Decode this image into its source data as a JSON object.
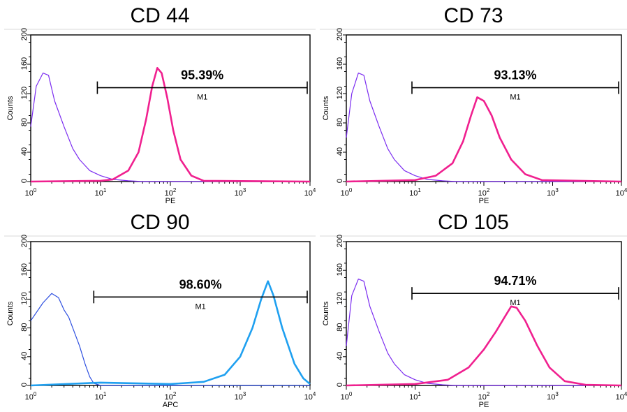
{
  "chart_data": [
    {
      "type": "line",
      "title": "CD 44",
      "xlabel": "PE",
      "ylabel": "Counts",
      "x_scale": "log",
      "xlim": [
        1,
        10000
      ],
      "ylim": [
        0,
        200
      ],
      "x_ticks": [
        1,
        10,
        100,
        1000,
        10000
      ],
      "y_ticks": [
        0,
        40,
        80,
        120,
        160,
        200
      ],
      "marker": {
        "label": "M1",
        "percent": "95.39%",
        "x_range": [
          9,
          10000
        ]
      },
      "series": [
        {
          "color": "#7B2CF0",
          "x": [
            1,
            1.2,
            1.5,
            1.8,
            2.2,
            3,
            4,
            5,
            7,
            10,
            15,
            25,
            40,
            10000
          ],
          "y": [
            75,
            130,
            148,
            145,
            110,
            75,
            45,
            30,
            15,
            8,
            3,
            1,
            0,
            0
          ]
        },
        {
          "color": "#F0208F",
          "x": [
            1,
            10,
            15,
            25,
            35,
            45,
            55,
            65,
            75,
            90,
            110,
            140,
            200,
            300,
            10000
          ],
          "y": [
            0,
            1,
            3,
            15,
            40,
            85,
            130,
            155,
            148,
            115,
            70,
            30,
            8,
            1,
            0
          ]
        }
      ]
    },
    {
      "type": "line",
      "title": "CD 73",
      "xlabel": "PE",
      "ylabel": "Counts",
      "x_scale": "log",
      "xlim": [
        1,
        10000
      ],
      "ylim": [
        0,
        200
      ],
      "x_ticks": [
        1,
        10,
        100,
        1000,
        10000
      ],
      "y_ticks": [
        0,
        40,
        80,
        120,
        160,
        200
      ],
      "marker": {
        "label": "M1",
        "percent": "93.13%",
        "x_range": [
          9,
          10000
        ]
      },
      "series": [
        {
          "color": "#7B2CF0",
          "x": [
            1,
            1.2,
            1.5,
            1.8,
            2.2,
            3,
            4,
            5,
            7,
            10,
            15,
            25,
            40,
            10000
          ],
          "y": [
            60,
            120,
            148,
            145,
            110,
            75,
            45,
            30,
            15,
            8,
            3,
            1,
            0,
            0
          ]
        },
        {
          "color": "#F0208F",
          "x": [
            1,
            10,
            20,
            35,
            50,
            65,
            80,
            100,
            130,
            170,
            250,
            400,
            700,
            10000
          ],
          "y": [
            0,
            2,
            8,
            25,
            55,
            90,
            115,
            110,
            90,
            60,
            30,
            10,
            2,
            0
          ]
        }
      ]
    },
    {
      "type": "line",
      "title": "CD 90",
      "xlabel": "APC",
      "ylabel": "Counts",
      "x_scale": "log",
      "xlim": [
        1,
        10000
      ],
      "ylim": [
        0,
        200
      ],
      "x_ticks": [
        1,
        10,
        100,
        1000,
        10000
      ],
      "y_ticks": [
        0,
        40,
        80,
        120,
        160,
        200
      ],
      "marker": {
        "label": "M1",
        "percent": "98.60%",
        "x_range": [
          8,
          10000
        ]
      },
      "series": [
        {
          "color": "#2D4FE0",
          "x": [
            1,
            1.5,
            2,
            2.5,
            3,
            3.5,
            4,
            5,
            6,
            7,
            8,
            10,
            10000
          ],
          "y": [
            90,
            115,
            128,
            122,
            105,
            95,
            80,
            55,
            30,
            12,
            3,
            0,
            0
          ]
        },
        {
          "color": "#1FA0F0",
          "x": [
            1,
            10,
            100,
            300,
            600,
            1000,
            1500,
            2000,
            2500,
            3000,
            4000,
            6000,
            8000,
            10000
          ],
          "y": [
            0,
            4,
            2,
            5,
            15,
            40,
            80,
            120,
            145,
            125,
            80,
            30,
            10,
            2
          ]
        }
      ]
    },
    {
      "type": "line",
      "title": "CD 105",
      "xlabel": "PE",
      "ylabel": "Counts",
      "x_scale": "log",
      "xlim": [
        1,
        10000
      ],
      "ylim": [
        0,
        200
      ],
      "x_ticks": [
        1,
        10,
        100,
        1000,
        10000
      ],
      "y_ticks": [
        0,
        40,
        80,
        120,
        160,
        200
      ],
      "marker": {
        "label": "M1",
        "percent": "94.71%",
        "x_range": [
          9,
          10000
        ]
      },
      "series": [
        {
          "color": "#7B2CF0",
          "x": [
            1,
            1.2,
            1.5,
            1.8,
            2.2,
            3,
            4,
            5,
            7,
            10,
            15,
            25,
            40,
            10000
          ],
          "y": [
            55,
            125,
            148,
            145,
            110,
            75,
            45,
            30,
            15,
            8,
            3,
            1,
            0,
            0
          ]
        },
        {
          "color": "#F0208F",
          "x": [
            1,
            10,
            30,
            60,
            100,
            150,
            200,
            250,
            300,
            400,
            600,
            900,
            1500,
            3000,
            10000
          ],
          "y": [
            0,
            2,
            8,
            25,
            50,
            75,
            95,
            110,
            108,
            90,
            55,
            25,
            6,
            1,
            0
          ]
        }
      ]
    }
  ]
}
